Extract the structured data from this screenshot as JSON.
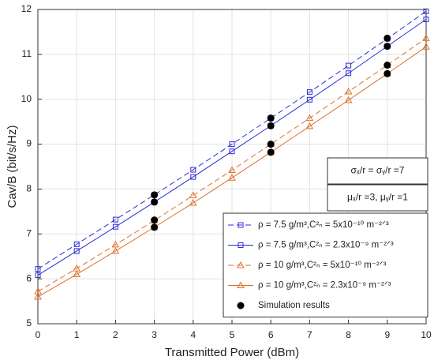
{
  "chart_data": {
    "type": "line",
    "xlabel": "Transmitted Power (dBm)",
    "ylabel": "Cav/B (bit/s/Hz)",
    "x": [
      0,
      1,
      2,
      3,
      4,
      5,
      6,
      7,
      8,
      9,
      10
    ],
    "xlim": [
      0,
      10
    ],
    "xticks": [
      0,
      1,
      2,
      3,
      4,
      5,
      6,
      7,
      8,
      9,
      10
    ],
    "ylim": [
      5,
      12
    ],
    "yticks": [
      5,
      6,
      7,
      8,
      9,
      10,
      11,
      12
    ],
    "grid": true,
    "legend": "lower right",
    "annotations": [
      "σₓ/r = σᵧ/r =7",
      "μₓ/r =3, μᵧ/r =1"
    ],
    "series": [
      {
        "name": "ρ = 7.5 g/m³,C²ₙ = 5x10⁻¹⁰ m⁻²ᐟ³",
        "color": "#2b2bd9",
        "dash": true,
        "marker": "square",
        "values": [
          6.22,
          6.77,
          7.32,
          7.87,
          8.43,
          9.0,
          9.58,
          10.16,
          10.75,
          11.35,
          11.96
        ]
      },
      {
        "name": "ρ = 7.5 g/m³,C²ₙ = 2.3x10⁻⁹ m⁻²ᐟ³",
        "color": "#2b2bd9",
        "dash": false,
        "marker": "square",
        "values": [
          6.08,
          6.62,
          7.16,
          7.71,
          8.27,
          8.84,
          9.41,
          9.99,
          10.58,
          11.18,
          11.78
        ]
      },
      {
        "name": "ρ = 10 g/m³,C²ₙ = 5x10⁻¹⁰ m⁻²ᐟ³",
        "color": "#e0702a",
        "dash": true,
        "marker": "triangle",
        "values": [
          5.72,
          6.23,
          6.76,
          7.3,
          7.86,
          8.42,
          9.0,
          9.58,
          10.17,
          10.76,
          11.36
        ]
      },
      {
        "name": "ρ = 10 g/m³,C²ₙ = 2.3x10⁻⁹ m⁻²ᐟ³",
        "color": "#e0702a",
        "dash": false,
        "marker": "triangle",
        "values": [
          5.6,
          6.1,
          6.62,
          7.15,
          7.69,
          8.25,
          8.82,
          9.4,
          9.98,
          10.57,
          11.17
        ]
      },
      {
        "name": "Simulation results",
        "color": "#000000",
        "line": false,
        "marker": "circle",
        "x": [
          3,
          3,
          3,
          3,
          6,
          6,
          6,
          6,
          9,
          9,
          9,
          9
        ],
        "values": [
          7.87,
          7.71,
          7.31,
          7.15,
          9.58,
          9.41,
          9.0,
          8.82,
          11.36,
          11.18,
          10.76,
          10.57
        ]
      }
    ]
  }
}
